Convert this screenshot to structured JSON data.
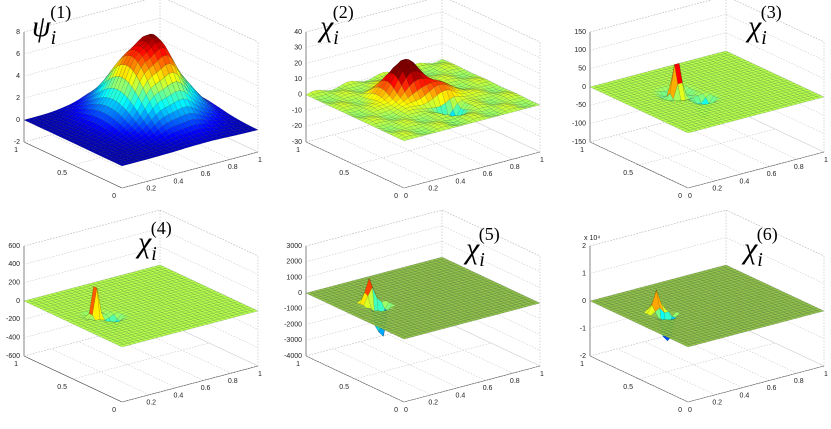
{
  "panels": [
    {
      "label": {
        "symbol": "ψ",
        "sub": "i",
        "sup": "(1)"
      },
      "zticks": [
        8,
        6,
        4,
        2,
        0,
        -2
      ],
      "xticks": [
        0.2,
        0.4,
        0.6,
        0.8,
        1
      ],
      "yticks": [
        0,
        0.5,
        1
      ]
    },
    {
      "label": {
        "symbol": "χ",
        "sub": "i",
        "sup": "(2)"
      },
      "zticks": [
        40,
        30,
        20,
        10,
        0,
        -10,
        -20,
        -30
      ],
      "xticks": [
        0,
        0.2,
        0.4,
        0.6,
        0.8,
        1
      ],
      "yticks": [
        0,
        0.5,
        1
      ]
    },
    {
      "label": {
        "symbol": "χ",
        "sub": "i",
        "sup": "(3)"
      },
      "zticks": [
        150,
        100,
        50,
        0,
        -50,
        -100,
        -150
      ],
      "xticks": [
        0,
        0.2,
        0.4,
        0.6,
        0.8,
        1
      ],
      "yticks": [
        0,
        0.5,
        1
      ]
    },
    {
      "label": {
        "symbol": "χ",
        "sub": "i",
        "sup": "(4)"
      },
      "zticks": [
        600,
        400,
        200,
        0,
        -200,
        -400,
        -600
      ],
      "xticks": [
        0.2,
        0.4,
        0.6,
        0.8,
        1
      ],
      "yticks": [
        0,
        0.5,
        1
      ]
    },
    {
      "label": {
        "symbol": "χ",
        "sub": "i",
        "sup": "(5)"
      },
      "zticks": [
        3000,
        2000,
        1000,
        0,
        -1000,
        -2000,
        -3000,
        -4000
      ],
      "xticks": [
        0,
        0.2,
        0.4,
        0.6,
        0.8,
        1
      ],
      "yticks": [
        0,
        0.5,
        1
      ]
    },
    {
      "label": {
        "symbol": "χ",
        "sub": "i",
        "sup": "(6)"
      },
      "multiplier": "x 10⁴",
      "zticks": [
        2,
        1,
        0,
        -1,
        -2
      ],
      "xticks": [
        0,
        0.2,
        0.4,
        0.6,
        0.8,
        1
      ],
      "yticks": [
        0,
        0.5,
        1
      ]
    }
  ]
}
